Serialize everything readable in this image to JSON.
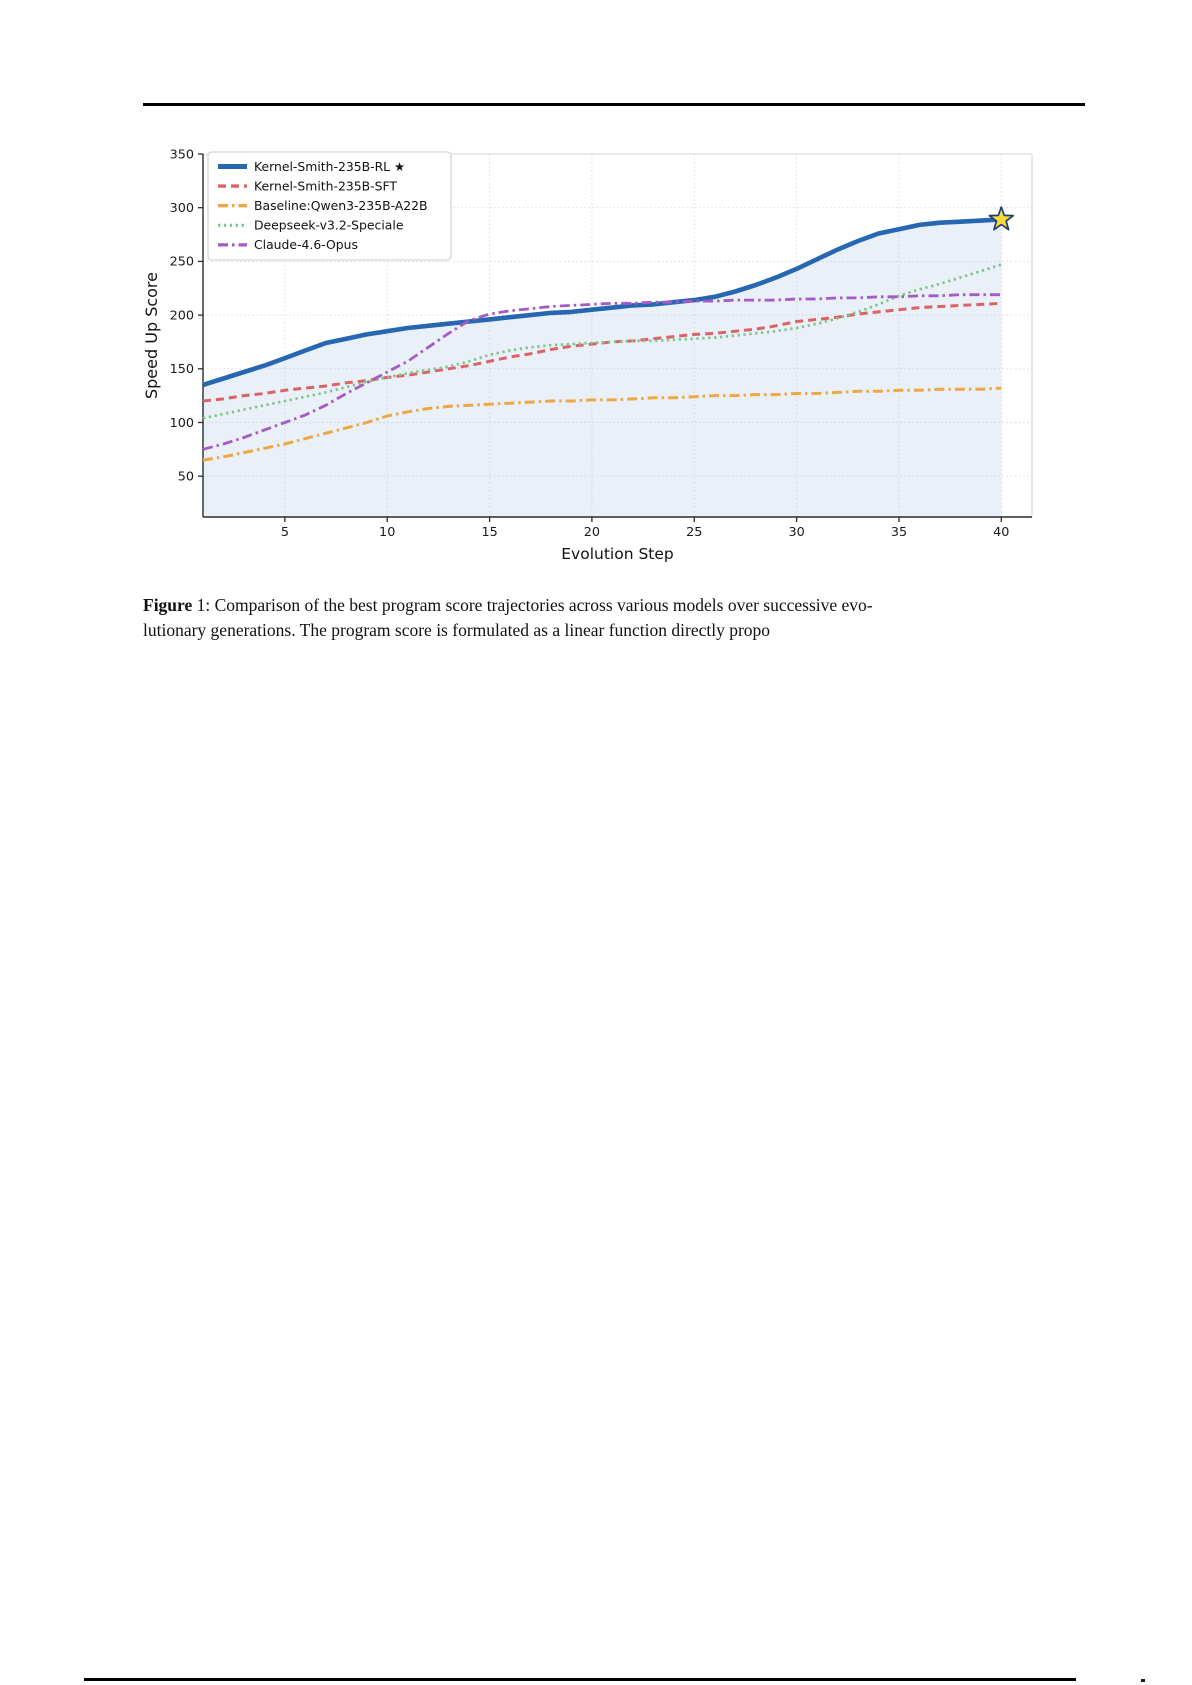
{
  "page": {
    "caption": {
      "figure_word": "Figure",
      "line1_rest": " 1: Comparison of the best program score trajectories across various models over successive evo-",
      "line2": "lutionary generations. The program score is formulated as a linear function directly propo"
    }
  },
  "chart_data": {
    "type": "line",
    "title": "",
    "xlabel": "Evolution Step",
    "ylabel": "Speed Up Score",
    "xlim": [
      1,
      41.5
    ],
    "ylim": [
      12,
      350
    ],
    "xticks": [
      5,
      10,
      15,
      20,
      25,
      30,
      35,
      40
    ],
    "yticks": [
      50,
      100,
      150,
      200,
      250,
      300,
      350
    ],
    "grid": true,
    "legend_position": "upper left",
    "x": [
      1,
      2,
      3,
      4,
      5,
      6,
      7,
      8,
      9,
      10,
      11,
      12,
      13,
      14,
      15,
      16,
      17,
      18,
      19,
      20,
      21,
      22,
      23,
      24,
      25,
      26,
      27,
      28,
      29,
      30,
      31,
      32,
      33,
      34,
      35,
      36,
      37,
      38,
      39,
      40
    ],
    "series": [
      {
        "name": "Kernel-Smith-235B-RL ★",
        "color": "#2767b2",
        "style": "solid",
        "width": 4.6,
        "fill_under": true,
        "values": [
          135,
          141,
          147,
          153,
          160,
          167,
          174,
          178,
          182,
          185,
          188,
          190,
          192,
          194,
          196,
          198,
          200,
          202,
          203,
          205,
          207,
          209,
          210,
          212,
          214,
          217,
          222,
          228,
          235,
          243,
          252,
          261,
          269,
          276,
          280,
          284,
          286,
          287,
          288,
          289
        ]
      },
      {
        "name": "Kernel-Smith-235B-SFT",
        "color": "#db6265",
        "style": "dashed",
        "width": 3.0,
        "fill_under": false,
        "values": [
          120,
          122,
          125,
          127,
          130,
          132,
          134,
          137,
          139,
          142,
          144,
          147,
          150,
          153,
          157,
          161,
          164,
          168,
          171,
          173,
          175,
          176,
          178,
          180,
          182,
          183,
          185,
          187,
          190,
          194,
          196,
          198,
          201,
          203,
          205,
          207,
          208,
          209,
          210,
          211
        ]
      },
      {
        "name": "Baseline:Qwen3-235B-A22B",
        "color": "#eda845",
        "style": "dashdot",
        "width": 3.0,
        "fill_under": false,
        "values": [
          65,
          68,
          72,
          76,
          80,
          85,
          90,
          95,
          100,
          106,
          110,
          113,
          115,
          116,
          117,
          118,
          119,
          120,
          120,
          121,
          121,
          122,
          123,
          123,
          124,
          125,
          125,
          126,
          126,
          127,
          127,
          128,
          129,
          129,
          130,
          130,
          131,
          131,
          131,
          132
        ]
      },
      {
        "name": "Deepseek-v3.2-Speciale",
        "color": "#7ec38b",
        "style": "dotted",
        "width": 2.7,
        "fill_under": false,
        "values": [
          104,
          108,
          112,
          116,
          120,
          124,
          128,
          133,
          138,
          142,
          146,
          149,
          152,
          157,
          163,
          167,
          170,
          172,
          173,
          174,
          175,
          176,
          176,
          177,
          178,
          179,
          181,
          183,
          185,
          188,
          192,
          197,
          203,
          210,
          218,
          224,
          229,
          235,
          241,
          247
        ]
      },
      {
        "name": "Claude-4.6-Opus",
        "color": "#a65ac6",
        "style": "dashdot",
        "width": 2.8,
        "fill_under": false,
        "values": [
          75,
          80,
          86,
          93,
          100,
          107,
          116,
          127,
          137,
          147,
          157,
          170,
          183,
          195,
          201,
          204,
          206,
          208,
          209,
          210,
          211,
          211,
          212,
          212,
          213,
          213,
          214,
          214,
          214,
          215,
          215,
          216,
          216,
          217,
          217,
          218,
          218,
          219,
          219,
          219
        ]
      }
    ],
    "star_marker": {
      "x": 40,
      "y": 289,
      "fill": "#f9d835",
      "edge": "#1d3f77"
    },
    "style_colors": {
      "area_fill": "rgba(39,103,178,0.10)",
      "grid": "#c9cdd7",
      "spine_dark": "#2b2b2b",
      "spine_light": "#d6d6d6",
      "tick_text": "#1a1a1a"
    }
  }
}
